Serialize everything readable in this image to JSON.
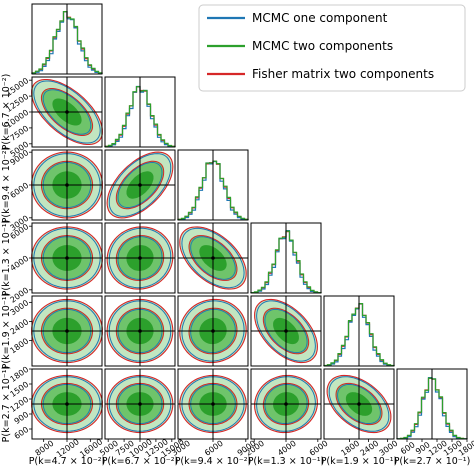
{
  "chart_data": {
    "type": "corner",
    "legend": {
      "placement": "top-right",
      "entries": [
        {
          "label": "MCMC one component",
          "color": "#1f77b4"
        },
        {
          "label": "MCMC two components",
          "color": "#2ca02c"
        },
        {
          "label": "Fisher matrix two components",
          "color": "#d62728"
        }
      ]
    },
    "parameters": [
      {
        "label": "P(k=4.7 × 10⁻²)",
        "fiducial": 12000,
        "sigma": 2000,
        "range": [
          6000,
          18000
        ],
        "ticks": [
          "8000",
          "12000",
          "16000"
        ]
      },
      {
        "label": "P(k=6.7 × 10⁻²)",
        "fiducial": 10000,
        "sigma": 1700,
        "range": [
          4500,
          15500
        ],
        "ticks": [
          "5000",
          "7500",
          "10000",
          "12500",
          "15000"
        ]
      },
      {
        "label": "P(k=9.4 × 10⁻²)",
        "fiducial": 6000,
        "sigma": 1000,
        "range": [
          2800,
          9200
        ],
        "ticks": [
          "3000",
          "6000",
          "9000"
        ]
      },
      {
        "label": "P(k=1.3 × 10⁻¹)",
        "fiducial": 4000,
        "sigma": 650,
        "range": [
          1800,
          6200
        ],
        "ticks": [
          "2000",
          "4000",
          "6000"
        ]
      },
      {
        "label": "P(k=1.9 × 10⁻¹)",
        "fiducial": 2100,
        "sigma": 330,
        "range": [
          1000,
          3200
        ],
        "ticks": [
          "1800",
          "2400",
          "3000"
        ]
      },
      {
        "label": "P(k=2.7 × 10⁻¹)",
        "fiducial": 1100,
        "sigma": 190,
        "range": [
          400,
          1800
        ],
        "ticks": [
          "600",
          "900",
          "1200",
          "1500",
          "1800"
        ]
      }
    ],
    "correlations": [
      [
        1.0,
        -0.6,
        0.0,
        0.0,
        0.0,
        0.0
      ],
      [
        -0.6,
        1.0,
        0.55,
        0.05,
        0.0,
        0.0
      ],
      [
        0.0,
        0.55,
        1.0,
        -0.5,
        0.05,
        0.0
      ],
      [
        0.0,
        0.05,
        -0.5,
        1.0,
        -0.5,
        0.05
      ],
      [
        0.0,
        0.0,
        0.05,
        -0.5,
        1.0,
        -0.45
      ],
      [
        0.0,
        0.0,
        0.0,
        0.05,
        -0.45,
        1.0
      ]
    ],
    "grid": false,
    "truth_lines": true
  }
}
